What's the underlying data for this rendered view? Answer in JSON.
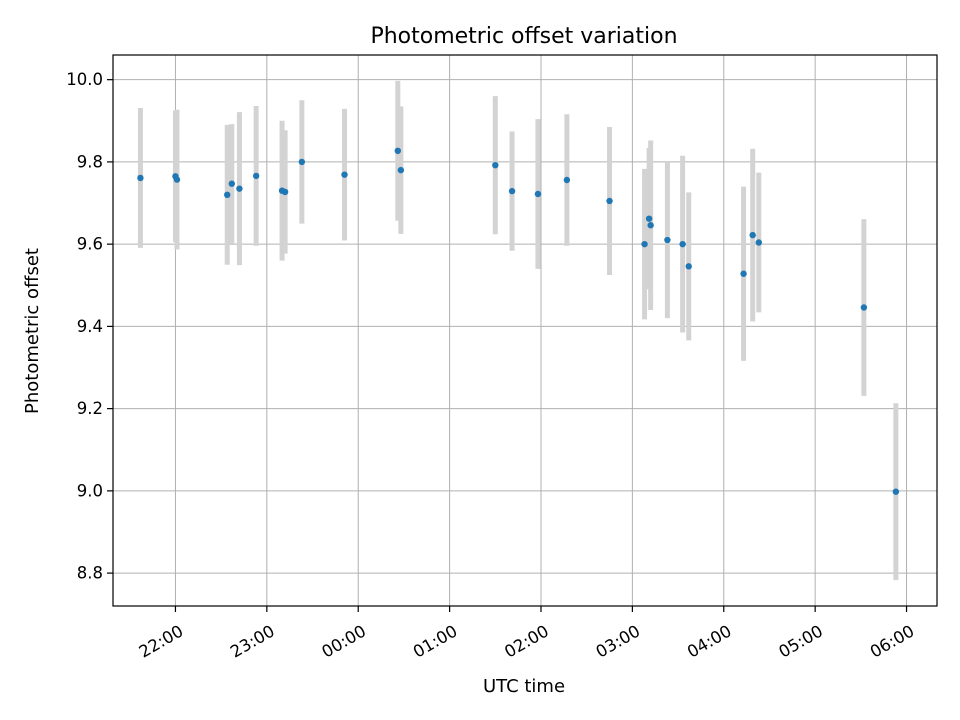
{
  "chart_data": {
    "type": "scatter",
    "title": "Photometric offset variation",
    "xlabel": "UTC time",
    "ylabel": "Photometric offset",
    "x_ticks": [
      "22:00",
      "23:00",
      "00:00",
      "01:00",
      "02:00",
      "03:00",
      "04:00",
      "05:00",
      "06:00"
    ],
    "y_ticks": [
      "8.8",
      "9.0",
      "9.2",
      "9.4",
      "9.6",
      "9.8",
      "10.0"
    ],
    "xlim": [
      "21:19",
      "06:20"
    ],
    "ylim": [
      8.72,
      10.06
    ],
    "grid": true,
    "error_bars": "symmetric",
    "colors": {
      "points": "#1f77b4",
      "error_bars": "#d3d3d3",
      "grid": "#b0b0b0"
    },
    "series": [
      {
        "points": [
          {
            "x": "21:37",
            "y": 9.761,
            "err": 0.17
          },
          {
            "x": "22:00",
            "y": 9.765,
            "err": 0.16
          },
          {
            "x": "22:01",
            "y": 9.757,
            "err": 0.17
          },
          {
            "x": "22:34",
            "y": 9.72,
            "err": 0.17
          },
          {
            "x": "22:37",
            "y": 9.747,
            "err": 0.145
          },
          {
            "x": "22:42",
            "y": 9.735,
            "err": 0.186
          },
          {
            "x": "22:53",
            "y": 9.766,
            "err": 0.17
          },
          {
            "x": "23:10",
            "y": 9.73,
            "err": 0.17
          },
          {
            "x": "23:12",
            "y": 9.727,
            "err": 0.15
          },
          {
            "x": "23:23",
            "y": 9.8,
            "err": 0.15
          },
          {
            "x": "23:51",
            "y": 9.769,
            "err": 0.16
          },
          {
            "x": "00:26",
            "y": 9.827,
            "err": 0.17
          },
          {
            "x": "00:28",
            "y": 9.78,
            "err": 0.155
          },
          {
            "x": "01:30",
            "y": 9.792,
            "err": 0.168
          },
          {
            "x": "01:41",
            "y": 9.729,
            "err": 0.145
          },
          {
            "x": "01:58",
            "y": 9.722,
            "err": 0.182
          },
          {
            "x": "02:17",
            "y": 9.756,
            "err": 0.16
          },
          {
            "x": "02:45",
            "y": 9.705,
            "err": 0.18
          },
          {
            "x": "03:08",
            "y": 9.6,
            "err": 0.183
          },
          {
            "x": "03:11",
            "y": 9.662,
            "err": 0.172
          },
          {
            "x": "03:12",
            "y": 9.646,
            "err": 0.206
          },
          {
            "x": "03:23",
            "y": 9.61,
            "err": 0.19
          },
          {
            "x": "03:33",
            "y": 9.6,
            "err": 0.215
          },
          {
            "x": "03:37",
            "y": 9.546,
            "err": 0.18
          },
          {
            "x": "04:13",
            "y": 9.528,
            "err": 0.212
          },
          {
            "x": "04:19",
            "y": 9.622,
            "err": 0.21
          },
          {
            "x": "04:23",
            "y": 9.604,
            "err": 0.17
          },
          {
            "x": "05:32",
            "y": 9.446,
            "err": 0.215
          },
          {
            "x": "05:53",
            "y": 8.998,
            "err": 0.215
          }
        ]
      }
    ]
  }
}
